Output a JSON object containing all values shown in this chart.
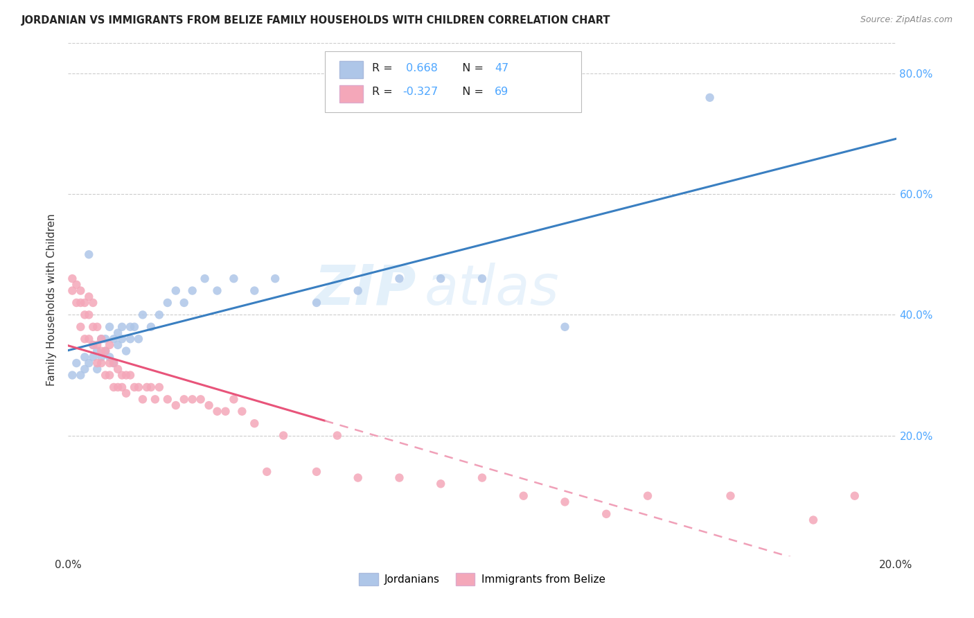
{
  "title": "JORDANIAN VS IMMIGRANTS FROM BELIZE FAMILY HOUSEHOLDS WITH CHILDREN CORRELATION CHART",
  "source": "Source: ZipAtlas.com",
  "ylabel": "Family Households with Children",
  "xlim": [
    0.0,
    0.2
  ],
  "ylim": [
    0.0,
    0.85
  ],
  "R1": 0.668,
  "N1": 47,
  "R2": -0.327,
  "N2": 69,
  "color_blue": "#aec6e8",
  "color_pink": "#f4a7b9",
  "line_color_blue": "#3a7fc1",
  "line_color_pink": "#e8547a",
  "line_color_pink_dash": "#f0a0b8",
  "legend_label1": "Jordanians",
  "legend_label2": "Immigrants from Belize",
  "watermark_zip": "ZIP",
  "watermark_atlas": "atlas",
  "jordanians_x": [
    0.001,
    0.002,
    0.003,
    0.004,
    0.004,
    0.005,
    0.005,
    0.006,
    0.006,
    0.007,
    0.007,
    0.008,
    0.008,
    0.009,
    0.009,
    0.01,
    0.01,
    0.011,
    0.011,
    0.012,
    0.012,
    0.013,
    0.013,
    0.014,
    0.015,
    0.015,
    0.016,
    0.017,
    0.018,
    0.02,
    0.022,
    0.024,
    0.026,
    0.028,
    0.03,
    0.033,
    0.036,
    0.04,
    0.045,
    0.05,
    0.06,
    0.07,
    0.08,
    0.09,
    0.1,
    0.12,
    0.155
  ],
  "jordanians_y": [
    0.3,
    0.32,
    0.3,
    0.31,
    0.33,
    0.5,
    0.32,
    0.33,
    0.35,
    0.31,
    0.34,
    0.33,
    0.36,
    0.34,
    0.36,
    0.33,
    0.38,
    0.32,
    0.36,
    0.35,
    0.37,
    0.36,
    0.38,
    0.34,
    0.36,
    0.38,
    0.38,
    0.36,
    0.4,
    0.38,
    0.4,
    0.42,
    0.44,
    0.42,
    0.44,
    0.46,
    0.44,
    0.46,
    0.44,
    0.46,
    0.42,
    0.44,
    0.46,
    0.46,
    0.46,
    0.38,
    0.76
  ],
  "belize_x": [
    0.001,
    0.001,
    0.002,
    0.002,
    0.003,
    0.003,
    0.003,
    0.004,
    0.004,
    0.004,
    0.005,
    0.005,
    0.005,
    0.006,
    0.006,
    0.006,
    0.007,
    0.007,
    0.007,
    0.008,
    0.008,
    0.008,
    0.009,
    0.009,
    0.01,
    0.01,
    0.01,
    0.011,
    0.011,
    0.012,
    0.012,
    0.013,
    0.013,
    0.014,
    0.014,
    0.015,
    0.016,
    0.017,
    0.018,
    0.019,
    0.02,
    0.021,
    0.022,
    0.024,
    0.026,
    0.028,
    0.03,
    0.032,
    0.034,
    0.036,
    0.038,
    0.04,
    0.042,
    0.045,
    0.048,
    0.052,
    0.06,
    0.065,
    0.07,
    0.08,
    0.09,
    0.1,
    0.11,
    0.12,
    0.13,
    0.14,
    0.16,
    0.18,
    0.19
  ],
  "belize_y": [
    0.44,
    0.46,
    0.45,
    0.42,
    0.44,
    0.42,
    0.38,
    0.42,
    0.4,
    0.36,
    0.43,
    0.4,
    0.36,
    0.42,
    0.38,
    0.35,
    0.38,
    0.35,
    0.32,
    0.36,
    0.34,
    0.32,
    0.34,
    0.3,
    0.35,
    0.32,
    0.3,
    0.32,
    0.28,
    0.31,
    0.28,
    0.3,
    0.28,
    0.3,
    0.27,
    0.3,
    0.28,
    0.28,
    0.26,
    0.28,
    0.28,
    0.26,
    0.28,
    0.26,
    0.25,
    0.26,
    0.26,
    0.26,
    0.25,
    0.24,
    0.24,
    0.26,
    0.24,
    0.22,
    0.14,
    0.2,
    0.14,
    0.2,
    0.13,
    0.13,
    0.12,
    0.13,
    0.1,
    0.09,
    0.07,
    0.1,
    0.1,
    0.06,
    0.1
  ]
}
